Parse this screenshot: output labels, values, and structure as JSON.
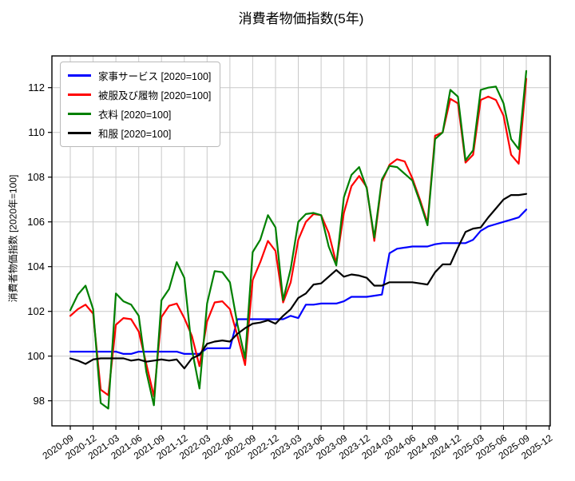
{
  "chart_data": {
    "type": "line",
    "title": "消費者物価指数(5年)",
    "ylabel": "消費者物価指数 [2020年=100]",
    "legend_position": "upper left",
    "grid": true,
    "ylim": [
      96.88,
      113.42
    ],
    "yticks": [
      98,
      100,
      102,
      104,
      106,
      108,
      110,
      112
    ],
    "x_tick_labels": [
      "2020-09",
      "2020-12",
      "2021-03",
      "2021-06",
      "2021-09",
      "2021-12",
      "2022-03",
      "2022-06",
      "2022-09",
      "2022-12",
      "2023-03",
      "2023-06",
      "2023-09",
      "2023-12",
      "2024-03",
      "2024-06",
      "2024-09",
      "2024-12",
      "2025-03",
      "2025-06",
      "2025-09",
      "2025-12"
    ],
    "x": [
      "2020-09",
      "2020-10",
      "2020-11",
      "2020-12",
      "2021-01",
      "2021-02",
      "2021-03",
      "2021-04",
      "2021-05",
      "2021-06",
      "2021-07",
      "2021-08",
      "2021-09",
      "2021-10",
      "2021-11",
      "2021-12",
      "2022-01",
      "2022-02",
      "2022-03",
      "2022-04",
      "2022-05",
      "2022-06",
      "2022-07",
      "2022-08",
      "2022-09",
      "2022-10",
      "2022-11",
      "2022-12",
      "2023-01",
      "2023-02",
      "2023-03",
      "2023-04",
      "2023-05",
      "2023-06",
      "2023-07",
      "2023-08",
      "2023-09",
      "2023-10",
      "2023-11",
      "2023-12",
      "2024-01",
      "2024-02",
      "2024-03",
      "2024-04",
      "2024-05",
      "2024-06",
      "2024-07",
      "2024-08",
      "2024-09",
      "2024-10",
      "2024-11",
      "2024-12",
      "2025-01",
      "2025-02",
      "2025-03",
      "2025-04",
      "2025-05",
      "2025-06",
      "2025-07",
      "2025-08",
      "2025-09"
    ],
    "series": [
      {
        "id": "kaji-service",
        "label": "家事サービス [2020=100]",
        "color": "#0000ff",
        "values": [
          100.2,
          100.2,
          100.2,
          100.2,
          100.2,
          100.2,
          100.2,
          100.1,
          100.1,
          100.2,
          100.2,
          100.2,
          100.2,
          100.2,
          100.2,
          100.1,
          100.1,
          100.1,
          100.35,
          100.35,
          100.35,
          100.35,
          101.65,
          101.65,
          101.65,
          101.65,
          101.65,
          101.65,
          101.65,
          101.8,
          101.7,
          102.3,
          102.3,
          102.35,
          102.35,
          102.35,
          102.45,
          102.65,
          102.65,
          102.65,
          102.7,
          102.75,
          104.6,
          104.8,
          104.85,
          104.9,
          104.9,
          104.9,
          105.0,
          105.05,
          105.05,
          105.05,
          105.05,
          105.2,
          105.6,
          105.8,
          105.9,
          106.0,
          106.1,
          106.2,
          106.55
        ]
      },
      {
        "id": "hifuku-hakimono",
        "label": "被服及び履物 [2020=100]",
        "color": "#ff0000",
        "values": [
          101.8,
          102.1,
          102.3,
          101.9,
          98.5,
          98.25,
          101.4,
          101.7,
          101.65,
          101.1,
          99.65,
          98.2,
          101.75,
          102.25,
          102.35,
          101.7,
          100.9,
          99.55,
          101.55,
          102.4,
          102.45,
          102.1,
          100.9,
          99.6,
          103.4,
          104.2,
          105.15,
          104.7,
          102.4,
          103.3,
          105.2,
          106.0,
          106.35,
          106.3,
          105.5,
          104.15,
          106.4,
          107.6,
          108.05,
          107.55,
          105.15,
          107.8,
          108.55,
          108.8,
          108.7,
          107.95,
          107.0,
          105.95,
          109.85,
          110.0,
          111.5,
          111.3,
          108.65,
          109.0,
          111.45,
          111.6,
          111.45,
          110.75,
          109.0,
          108.6,
          112.4
        ]
      },
      {
        "id": "iryo",
        "label": "衣料 [2020=100]",
        "color": "#008000",
        "values": [
          102.05,
          102.75,
          103.15,
          102.1,
          97.9,
          97.65,
          102.8,
          102.45,
          102.3,
          101.8,
          99.3,
          97.8,
          102.5,
          103.0,
          104.2,
          103.5,
          100.3,
          98.55,
          102.35,
          103.8,
          103.75,
          103.3,
          101.4,
          99.9,
          104.65,
          105.2,
          106.3,
          105.75,
          102.5,
          103.9,
          106.0,
          106.35,
          106.4,
          106.3,
          104.9,
          104.05,
          107.1,
          108.1,
          108.45,
          107.5,
          105.3,
          107.9,
          108.5,
          108.45,
          108.15,
          107.85,
          106.9,
          105.85,
          109.7,
          110.0,
          111.9,
          111.6,
          108.75,
          109.2,
          111.9,
          112.0,
          112.05,
          111.3,
          109.7,
          109.25,
          112.75
        ]
      },
      {
        "id": "wafuku",
        "label": "和服 [2020=100]",
        "color": "#000000",
        "values": [
          99.9,
          99.8,
          99.65,
          99.85,
          99.9,
          99.9,
          99.9,
          99.9,
          99.8,
          99.85,
          99.75,
          99.8,
          99.85,
          99.8,
          99.85,
          99.45,
          99.9,
          100.05,
          100.55,
          100.65,
          100.7,
          100.65,
          101.0,
          101.25,
          101.45,
          101.5,
          101.6,
          101.45,
          101.8,
          102.1,
          102.6,
          102.8,
          103.2,
          103.25,
          103.55,
          103.85,
          103.55,
          103.65,
          103.6,
          103.5,
          103.15,
          103.15,
          103.3,
          103.3,
          103.3,
          103.3,
          103.25,
          103.2,
          103.75,
          104.1,
          104.1,
          104.85,
          105.55,
          105.7,
          105.75,
          106.2,
          106.6,
          107.0,
          107.2,
          107.2,
          107.25
        ]
      }
    ]
  }
}
